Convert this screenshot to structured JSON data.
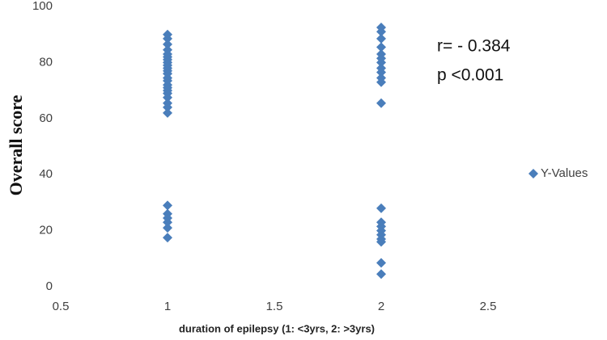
{
  "chart_data": {
    "type": "scatter",
    "x_label": "duration of epilepsy  (1: <3yrs, 2: >3yrs)",
    "y_label": "Overall score",
    "annotations": [
      "r= - 0.384",
      "p <0.001"
    ],
    "x": [
      1,
      1,
      1,
      1,
      1,
      1,
      1,
      1,
      1,
      1,
      1,
      1,
      1,
      1,
      1,
      1,
      1,
      1,
      1,
      1,
      1,
      1,
      1,
      1,
      1,
      1,
      1,
      1,
      2,
      2,
      2,
      2,
      2,
      2,
      2,
      2,
      2,
      2,
      2,
      2,
      2,
      2,
      2,
      2,
      2,
      2,
      2,
      2,
      2
    ],
    "series": [
      {
        "name": "Y-Values",
        "color": "#4a7ebb",
        "values": [
          90,
          88.5,
          86.5,
          84.5,
          83,
          82,
          81,
          80,
          79,
          78,
          77,
          76,
          74.5,
          73.5,
          72,
          71,
          70,
          69,
          67.5,
          65.5,
          64,
          62,
          29,
          26,
          24.5,
          23,
          21,
          17.5,
          92.5,
          91,
          88.5,
          85.5,
          83,
          81.5,
          80,
          78,
          76.5,
          74.5,
          73,
          65.5,
          28,
          23,
          21.5,
          20,
          18.5,
          17,
          16,
          8.5,
          4.5
        ]
      }
    ],
    "xlim": [
      0.5,
      2.5
    ],
    "xticks": [
      0.5,
      1,
      1.5,
      2,
      2.5
    ],
    "ylim": [
      0,
      100
    ],
    "yticks": [
      0,
      20,
      40,
      60,
      80,
      100
    ],
    "grid": false,
    "legend": "right"
  }
}
